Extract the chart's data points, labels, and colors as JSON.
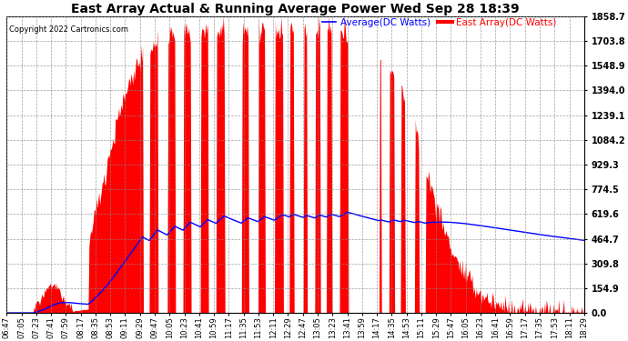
{
  "title": "East Array Actual & Running Average Power Wed Sep 28 18:39",
  "copyright": "Copyright 2022 Cartronics.com",
  "legend_avg": "Average(DC Watts)",
  "legend_east": "East Array(DC Watts)",
  "ymax": 1858.7,
  "yticks": [
    0.0,
    154.9,
    309.8,
    464.7,
    619.6,
    774.5,
    929.3,
    1084.2,
    1239.1,
    1394.0,
    1548.9,
    1703.8,
    1858.7
  ],
  "bg_color": "#ffffff",
  "fill_color": "#ff0000",
  "avg_color": "#0000ff",
  "east_color": "#ff0000",
  "title_color": "#000000",
  "copyright_color": "#000000",
  "grid_color": "#888888",
  "xticks": [
    "06:47",
    "07:05",
    "07:23",
    "07:41",
    "07:59",
    "08:17",
    "08:35",
    "08:53",
    "09:11",
    "09:29",
    "09:47",
    "10:05",
    "10:23",
    "10:41",
    "10:59",
    "11:17",
    "11:35",
    "11:53",
    "12:11",
    "12:29",
    "12:47",
    "13:05",
    "13:23",
    "13:41",
    "13:59",
    "14:17",
    "14:35",
    "14:53",
    "15:11",
    "15:29",
    "15:47",
    "16:05",
    "16:23",
    "16:41",
    "16:59",
    "17:17",
    "17:35",
    "17:53",
    "18:11",
    "18:29"
  ]
}
